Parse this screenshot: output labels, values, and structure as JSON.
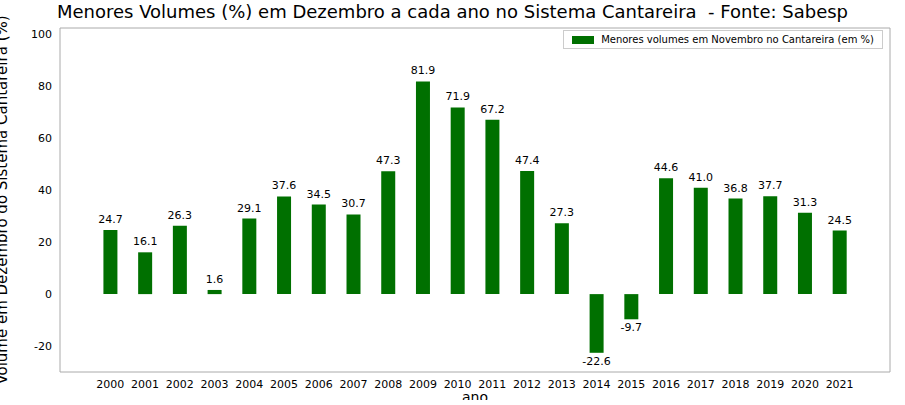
{
  "chart_data": {
    "type": "bar",
    "title": "Menores Volumes (%) em Dezembro a cada ano no Sistema Cantareira  - Fonte: Sabesp",
    "x_label": "ano",
    "y_label": "Volume em Dezembro do Sistema Cantareira (%)",
    "categories": [
      "2000",
      "2001",
      "2002",
      "2003",
      "2004",
      "2005",
      "2006",
      "2007",
      "2008",
      "2009",
      "2010",
      "2011",
      "2012",
      "2013",
      "2014",
      "2015",
      "2016",
      "2017",
      "2018",
      "2019",
      "2020",
      "2021"
    ],
    "series": [
      {
        "name": "Menores volumes em Novembro no Cantareira (em %)",
        "color": "#007000",
        "values": [
          24.7,
          16.1,
          26.3,
          1.6,
          29.1,
          37.6,
          34.5,
          30.7,
          47.3,
          81.9,
          71.9,
          67.2,
          47.4,
          27.3,
          -22.6,
          -9.7,
          44.6,
          41.0,
          36.8,
          37.7,
          31.3,
          24.5
        ],
        "value_labels": [
          "24.7",
          "16.1",
          "26.3",
          "1.6",
          "29.1",
          "37.6",
          "34.5",
          "30.7",
          "47.3",
          "81.9",
          "71.9",
          "67.2",
          "47.4",
          "27.3",
          "-22.6",
          "-9.7",
          "44.6",
          "41.0",
          "36.8",
          "37.7",
          "31.3",
          "24.5"
        ]
      }
    ],
    "ylim": [
      -30,
      102.5
    ],
    "yticks": [
      -20,
      0,
      20,
      40,
      60,
      80,
      100
    ],
    "legend": "upper right",
    "data_labels": true,
    "grid": false
  }
}
